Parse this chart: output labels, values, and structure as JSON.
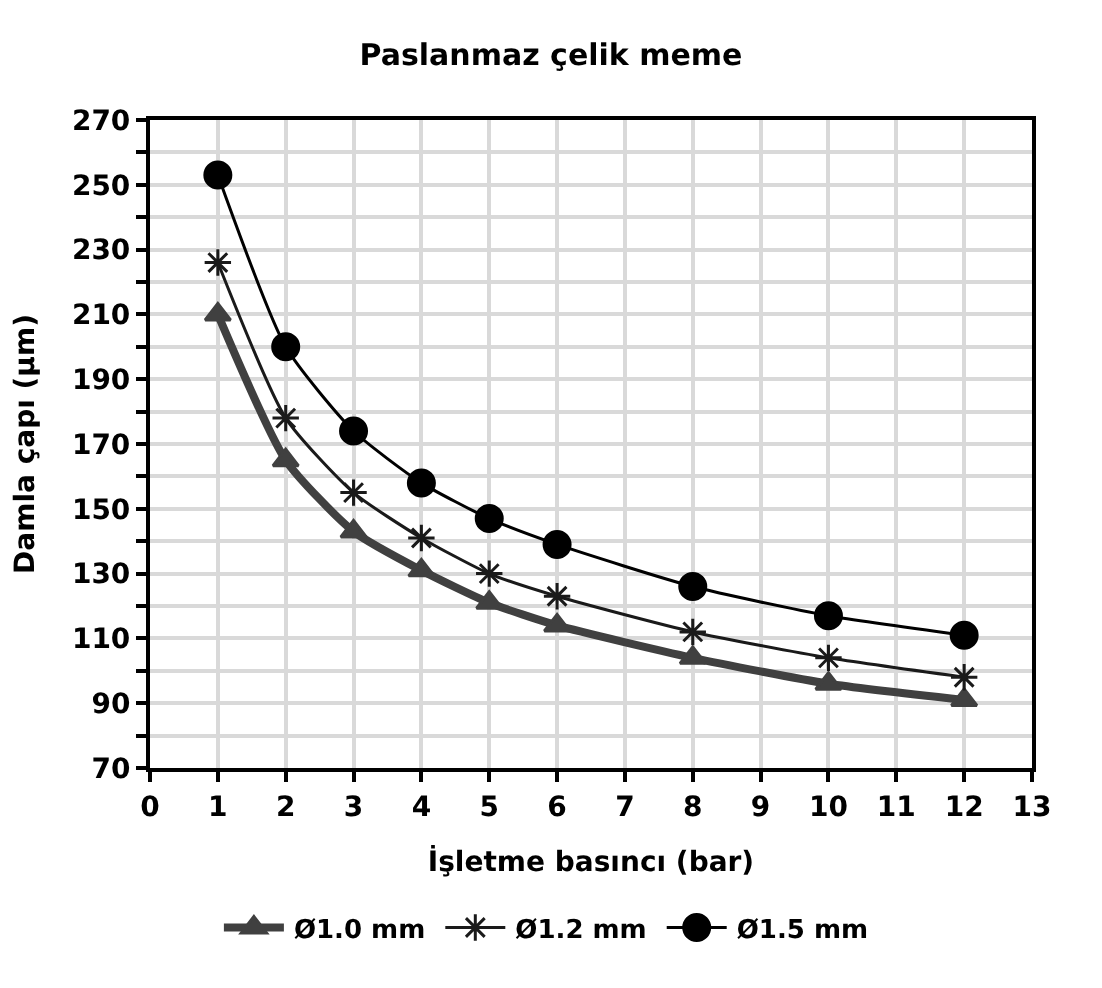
{
  "chart_data": {
    "type": "line",
    "title": "Paslanmaz çelik meme",
    "xlabel": "İşletme basıncı (bar)",
    "ylabel": "Damla çapı (µm)",
    "x": [
      1,
      2,
      3,
      4,
      5,
      6,
      8,
      10,
      12
    ],
    "series": [
      {
        "name": "Ø1.0 mm",
        "color": "#404040",
        "marker": "triangle",
        "values": [
          210,
          165,
          143,
          131,
          121,
          114,
          104,
          96,
          91
        ]
      },
      {
        "name": "Ø1.2 mm",
        "color": "#1a1a1a",
        "marker": "cross",
        "values": [
          226,
          178,
          155,
          141,
          130,
          123,
          112,
          104,
          98
        ]
      },
      {
        "name": "Ø1.5 mm",
        "color": "#000000",
        "marker": "circle",
        "values": [
          253,
          200,
          174,
          158,
          147,
          139,
          126,
          117,
          111
        ]
      }
    ],
    "xlim": [
      0,
      13
    ],
    "xticks": [
      0,
      1,
      2,
      3,
      4,
      5,
      6,
      7,
      8,
      9,
      10,
      11,
      12,
      13
    ],
    "ylim": [
      70,
      270
    ],
    "yticks": [
      70,
      {
        "value": 80,
        "label": null
      },
      90,
      {
        "value": 100,
        "label": null
      },
      110,
      {
        "value": 120,
        "label": null
      },
      130,
      {
        "value": 140,
        "label": null
      },
      150,
      {
        "value": 160,
        "label": null
      },
      170,
      {
        "value": 180,
        "label": null
      },
      190,
      {
        "value": 200,
        "label": null
      },
      210,
      {
        "value": 220,
        "label": null
      },
      230,
      {
        "value": 240,
        "label": null
      },
      250,
      {
        "value": 260,
        "label": null
      },
      270
    ],
    "grid": true,
    "legend": "bottom",
    "line_style": "solid"
  }
}
